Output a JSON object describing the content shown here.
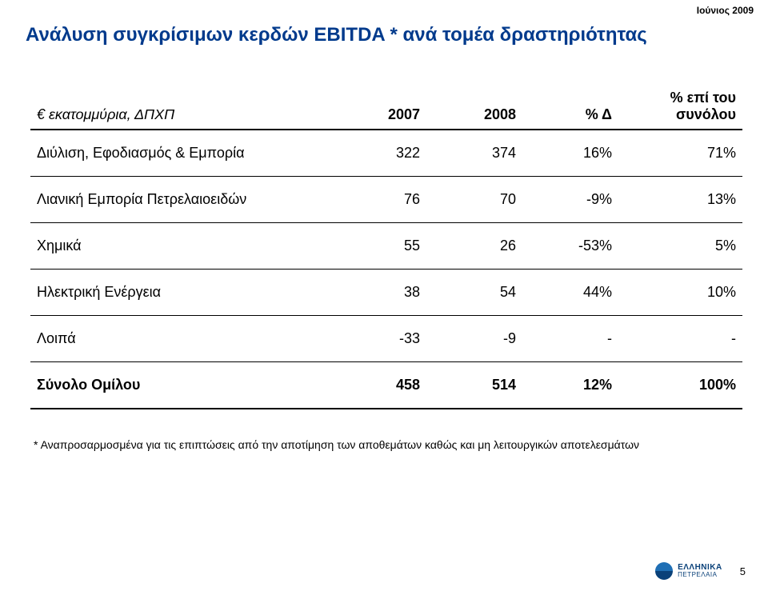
{
  "top_right_date": "Ιούνιος 2009",
  "title": "Ανάλυση συγκρίσιμων κερδών EBITDA * ανά τομέα δραστηριότητας",
  "title_color": "#003a8c",
  "table": {
    "border_color": "#000000",
    "header": {
      "row_label": "€ εκατομμύρια, ΔΠΧΠ",
      "columns": [
        "2007",
        "2008",
        "% Δ",
        "% επί του συνόλου"
      ]
    },
    "rows": [
      {
        "label": "Διύλιση, Εφοδιασμός & Εμπορία",
        "cells": [
          "322",
          "374",
          "16%",
          "71%"
        ],
        "total": false
      },
      {
        "label": "Λιανική Εμπορία Πετρελαιοειδών",
        "cells": [
          "76",
          "70",
          "-9%",
          "13%"
        ],
        "total": false
      },
      {
        "label": "Χημικά",
        "cells": [
          "55",
          "26",
          "-53%",
          "5%"
        ],
        "total": false
      },
      {
        "label": "Ηλεκτρική Ενέργεια",
        "cells": [
          "38",
          "54",
          "44%",
          "10%"
        ],
        "total": false
      },
      {
        "label": "Λοιπά",
        "cells": [
          "-33",
          "-9",
          "-",
          "-"
        ],
        "total": false
      },
      {
        "label": "Σύνολο Ομίλου",
        "cells": [
          "458",
          "514",
          "12%",
          "100%"
        ],
        "total": true
      }
    ]
  },
  "footnote": "* Αναπροσαρμοσμένα για τις επιπτώσεις από την αποτίμηση των αποθεμάτων καθώς και μη λειτουργικών αποτελεσμάτων",
  "footer": {
    "logo_top_color": "#1f6fb5",
    "logo_bottom_color": "#0a4179",
    "logo_text_line1": "ΕΛΛΗΝΙΚΑ",
    "logo_text_line2": "ΠΕΤΡΕΛΑΙΑ",
    "logo_text_color": "#0a4179",
    "page_number": "5"
  },
  "colors": {
    "text": "#000000",
    "background": "#ffffff"
  }
}
